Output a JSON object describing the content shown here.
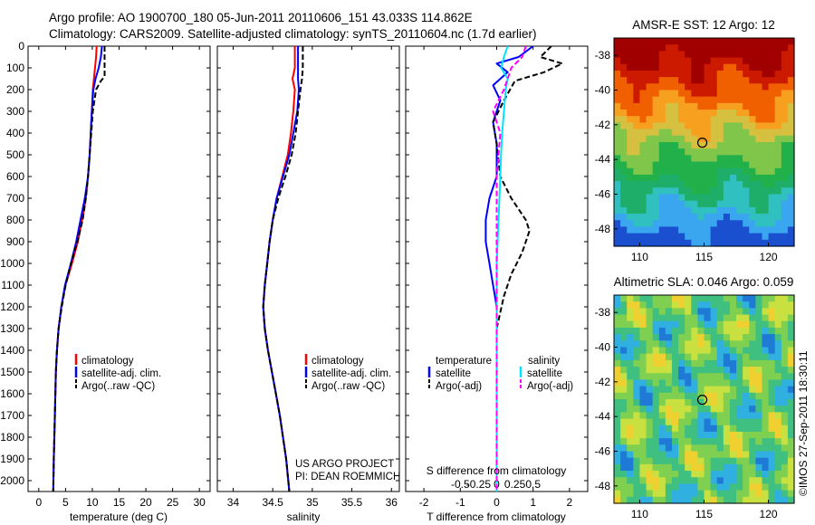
{
  "header": {
    "line1": "Argo profile: AO 1900700_180 05-Jun-2011 20110606_151 43.033S 114.862E",
    "line2": "Climatology: CARS2009. Satellite-adjusted climatology: synTS_20110604.nc (1.7d earlier)"
  },
  "side_label": "©IMOS 27-Sep-2011 18:30:11",
  "colors": {
    "climatology": "#ff0000",
    "satellite": "#0000ff",
    "argo": "#000000",
    "salinity_sat": "#00e5ff",
    "salinity_argo": "#ff00ff"
  },
  "chart_data": [
    {
      "type": "line",
      "id": "temperature",
      "xlabel": "temperature (deg C)",
      "ylabel": "",
      "xlim": [
        -2,
        32
      ],
      "xticks": [
        "0",
        "5",
        "10",
        "15",
        "20",
        "25",
        "30"
      ],
      "ylim": [
        0,
        2050
      ],
      "yticks": [
        "0",
        "100",
        "200",
        "300",
        "400",
        "500",
        "600",
        "700",
        "800",
        "900",
        "1000",
        "1100",
        "1200",
        "1300",
        "1400",
        "1500",
        "1600",
        "1700",
        "1800",
        "1900",
        "2000"
      ],
      "legend": [
        "climatology",
        "satellite-adj. clim.",
        "Argo(..raw -QC)"
      ],
      "series": [
        {
          "name": "climatology",
          "style": "solid",
          "color": "#ff0000",
          "points": [
            [
              10.8,
              0
            ],
            [
              10.7,
              50
            ],
            [
              10.5,
              100
            ],
            [
              10.3,
              150
            ],
            [
              10.1,
              200
            ],
            [
              9.9,
              300
            ],
            [
              9.7,
              400
            ],
            [
              9.5,
              500
            ],
            [
              9.2,
              600
            ],
            [
              8.8,
              700
            ],
            [
              8.1,
              800
            ],
            [
              7.3,
              900
            ],
            [
              6.2,
              1000
            ],
            [
              5.0,
              1100
            ],
            [
              4.2,
              1200
            ],
            [
              3.7,
              1300
            ],
            [
              3.4,
              1400
            ],
            [
              3.2,
              1500
            ],
            [
              3.0,
              1700
            ],
            [
              2.8,
              1900
            ],
            [
              2.7,
              2050
            ]
          ]
        },
        {
          "name": "satellite-adj. clim.",
          "style": "solid",
          "color": "#0000ff",
          "points": [
            [
              11.8,
              0
            ],
            [
              11.6,
              50
            ],
            [
              11.2,
              100
            ],
            [
              10.6,
              150
            ],
            [
              10.2,
              200
            ],
            [
              9.9,
              300
            ],
            [
              9.7,
              400
            ],
            [
              9.5,
              500
            ],
            [
              9.2,
              600
            ],
            [
              8.6,
              700
            ],
            [
              7.8,
              800
            ],
            [
              7.0,
              900
            ],
            [
              6.0,
              1000
            ],
            [
              4.9,
              1100
            ],
            [
              4.2,
              1200
            ],
            [
              3.7,
              1300
            ],
            [
              3.4,
              1400
            ],
            [
              3.2,
              1500
            ],
            [
              3.0,
              1700
            ],
            [
              2.8,
              1900
            ],
            [
              2.7,
              2050
            ]
          ]
        },
        {
          "name": "Argo(..raw -QC)",
          "style": "dashed",
          "color": "#000000",
          "points": [
            [
              12.3,
              0
            ],
            [
              12.3,
              50
            ],
            [
              12.3,
              100
            ],
            [
              12.3,
              140
            ],
            [
              11.6,
              160
            ],
            [
              10.7,
              200
            ],
            [
              10.1,
              300
            ],
            [
              9.8,
              400
            ],
            [
              9.5,
              500
            ],
            [
              9.2,
              600
            ],
            [
              8.8,
              700
            ],
            [
              8.2,
              800
            ],
            [
              7.2,
              900
            ],
            [
              6.0,
              1000
            ],
            [
              5.0,
              1100
            ],
            [
              4.3,
              1200
            ],
            [
              3.7,
              1300
            ],
            [
              3.4,
              1400
            ],
            [
              3.2,
              1500
            ],
            [
              3.0,
              1700
            ],
            [
              2.8,
              1900
            ],
            [
              2.7,
              2050
            ]
          ]
        }
      ]
    },
    {
      "type": "line",
      "id": "salinity",
      "xlabel": "salinity",
      "ylabel": "",
      "xlim": [
        33.8,
        36.1
      ],
      "xticks": [
        "34",
        "34.5",
        "35",
        "35.5",
        "36"
      ],
      "ylim": [
        0,
        2050
      ],
      "legend": [
        "climatology",
        "satellite-adj. clim.",
        "Argo(..raw -QC)"
      ],
      "annotation": [
        "US ARGO PROJECT",
        "PI: DEAN ROEMMICH"
      ],
      "series": [
        {
          "name": "climatology",
          "style": "solid",
          "color": "#ff0000",
          "points": [
            [
              34.78,
              0
            ],
            [
              34.78,
              100
            ],
            [
              34.75,
              150
            ],
            [
              34.78,
              200
            ],
            [
              34.76,
              300
            ],
            [
              34.73,
              400
            ],
            [
              34.69,
              500
            ],
            [
              34.62,
              600
            ],
            [
              34.55,
              700
            ],
            [
              34.5,
              800
            ],
            [
              34.46,
              900
            ],
            [
              34.43,
              1000
            ],
            [
              34.4,
              1100
            ],
            [
              34.38,
              1200
            ],
            [
              34.4,
              1300
            ],
            [
              34.44,
              1400
            ],
            [
              34.49,
              1500
            ],
            [
              34.54,
              1600
            ],
            [
              34.59,
              1700
            ],
            [
              34.63,
              1800
            ],
            [
              34.67,
              1900
            ],
            [
              34.71,
              2050
            ]
          ]
        },
        {
          "name": "satellite-adj. clim.",
          "style": "solid",
          "color": "#0000ff",
          "points": [
            [
              34.82,
              0
            ],
            [
              34.82,
              80
            ],
            [
              34.82,
              150
            ],
            [
              34.83,
              200
            ],
            [
              34.81,
              300
            ],
            [
              34.76,
              400
            ],
            [
              34.71,
              500
            ],
            [
              34.63,
              600
            ],
            [
              34.55,
              700
            ],
            [
              34.5,
              800
            ],
            [
              34.46,
              900
            ],
            [
              34.43,
              1000
            ],
            [
              34.4,
              1100
            ],
            [
              34.38,
              1200
            ],
            [
              34.4,
              1300
            ],
            [
              34.44,
              1400
            ],
            [
              34.49,
              1500
            ],
            [
              34.54,
              1600
            ],
            [
              34.59,
              1700
            ],
            [
              34.63,
              1800
            ],
            [
              34.67,
              1900
            ],
            [
              34.71,
              2050
            ]
          ]
        },
        {
          "name": "Argo(..raw -QC)",
          "style": "dashed",
          "color": "#000000",
          "points": [
            [
              34.88,
              0
            ],
            [
              34.88,
              100
            ],
            [
              34.87,
              150
            ],
            [
              34.85,
              200
            ],
            [
              34.82,
              300
            ],
            [
              34.79,
              400
            ],
            [
              34.74,
              500
            ],
            [
              34.66,
              600
            ],
            [
              34.57,
              700
            ],
            [
              34.5,
              800
            ],
            [
              34.46,
              900
            ],
            [
              34.43,
              1000
            ],
            [
              34.4,
              1100
            ],
            [
              34.38,
              1200
            ],
            [
              34.4,
              1300
            ],
            [
              34.44,
              1400
            ],
            [
              34.49,
              1500
            ],
            [
              34.54,
              1600
            ],
            [
              34.59,
              1700
            ],
            [
              34.63,
              1800
            ],
            [
              34.67,
              1900
            ],
            [
              34.71,
              2050
            ]
          ]
        }
      ]
    },
    {
      "type": "line",
      "id": "difference",
      "xlabel": "T difference from climatology",
      "xlabel_top": "S difference from climatology",
      "xlim": [
        -2.5,
        2.5
      ],
      "xticks": [
        "-2",
        "-1",
        "0",
        "1",
        "2"
      ],
      "xticks_top": [
        "-0.5",
        "-0.25",
        "0",
        "0.25",
        "0.5"
      ],
      "xticks_top_pos": [
        -1.0,
        -0.5,
        0,
        0.5,
        1.0
      ],
      "ylim": [
        0,
        2050
      ],
      "legend_titles": [
        "temperature",
        "salinity"
      ],
      "legend": [
        "satellite",
        "Argo(-adj)",
        "satellite",
        "Argo(-adj)"
      ],
      "series": [
        {
          "name": "temperature satellite",
          "style": "solid",
          "color": "#0000ff",
          "points": [
            [
              1.0,
              0
            ],
            [
              0.6,
              50
            ],
            [
              0.0,
              80
            ],
            [
              0.3,
              120
            ],
            [
              -0.1,
              180
            ],
            [
              0.1,
              250
            ],
            [
              -0.1,
              350
            ],
            [
              0.0,
              450
            ],
            [
              0.0,
              600
            ],
            [
              -0.2,
              700
            ],
            [
              -0.3,
              800
            ],
            [
              -0.3,
              900
            ],
            [
              -0.2,
              1000
            ],
            [
              -0.1,
              1100
            ],
            [
              0.0,
              1200
            ],
            [
              0.0,
              1400
            ],
            [
              0.0,
              1700
            ],
            [
              0.0,
              2050
            ]
          ]
        },
        {
          "name": "temperature Argo(-adj)",
          "style": "dashed",
          "color": "#000000",
          "points": [
            [
              1.5,
              0
            ],
            [
              1.2,
              50
            ],
            [
              1.8,
              80
            ],
            [
              1.3,
              120
            ],
            [
              0.5,
              160
            ],
            [
              0.2,
              250
            ],
            [
              -0.1,
              350
            ],
            [
              0.0,
              450
            ],
            [
              0.1,
              600
            ],
            [
              0.4,
              700
            ],
            [
              0.8,
              800
            ],
            [
              0.9,
              850
            ],
            [
              0.7,
              950
            ],
            [
              0.4,
              1050
            ],
            [
              0.2,
              1150
            ],
            [
              0.0,
              1300
            ],
            [
              0.0,
              2050
            ]
          ]
        },
        {
          "name": "salinity satellite",
          "style": "solid",
          "color": "#00e5ff",
          "points": [
            [
              0.3,
              0
            ],
            [
              0.2,
              50
            ],
            [
              0.12,
              100
            ],
            [
              0.3,
              150
            ],
            [
              0.25,
              200
            ],
            [
              0.2,
              300
            ],
            [
              0.15,
              400
            ],
            [
              0.12,
              500
            ],
            [
              0.1,
              600
            ],
            [
              0.05,
              800
            ],
            [
              0.0,
              1000
            ],
            [
              0.0,
              1300
            ],
            [
              0.0,
              2050
            ]
          ]
        },
        {
          "name": "salinity Argo(-adj)",
          "style": "dashed",
          "color": "#ff00ff",
          "points": [
            [
              0.8,
              0
            ],
            [
              0.7,
              50
            ],
            [
              0.4,
              100
            ],
            [
              0.3,
              150
            ],
            [
              0.2,
              200
            ],
            [
              -0.1,
              300
            ],
            [
              0.1,
              400
            ],
            [
              0.05,
              500
            ],
            [
              0.0,
              600
            ],
            [
              0.0,
              800
            ],
            [
              0.0,
              2050
            ]
          ]
        }
      ]
    },
    {
      "type": "heatmap",
      "id": "sst_map",
      "title": "AMSR-E SST: 12 Argo: 12",
      "xlim": [
        108,
        122
      ],
      "ylim": [
        -49,
        -37
      ],
      "xticks": [
        "110",
        "115",
        "120"
      ],
      "yticks": [
        "-38",
        "-40",
        "-42",
        "-44",
        "-46",
        "-48"
      ],
      "marker": {
        "lon": 114.862,
        "lat": -43.033
      }
    },
    {
      "type": "heatmap",
      "id": "sla_map",
      "title": "Altimetric SLA: 0.046 Argo: 0.059",
      "xlim": [
        108,
        122
      ],
      "ylim": [
        -49,
        -37
      ],
      "xticks": [
        "110",
        "115",
        "120"
      ],
      "yticks": [
        "-38",
        "-40",
        "-42",
        "-44",
        "-46",
        "-48"
      ],
      "marker": {
        "lon": 114.862,
        "lat": -43.033
      }
    }
  ]
}
